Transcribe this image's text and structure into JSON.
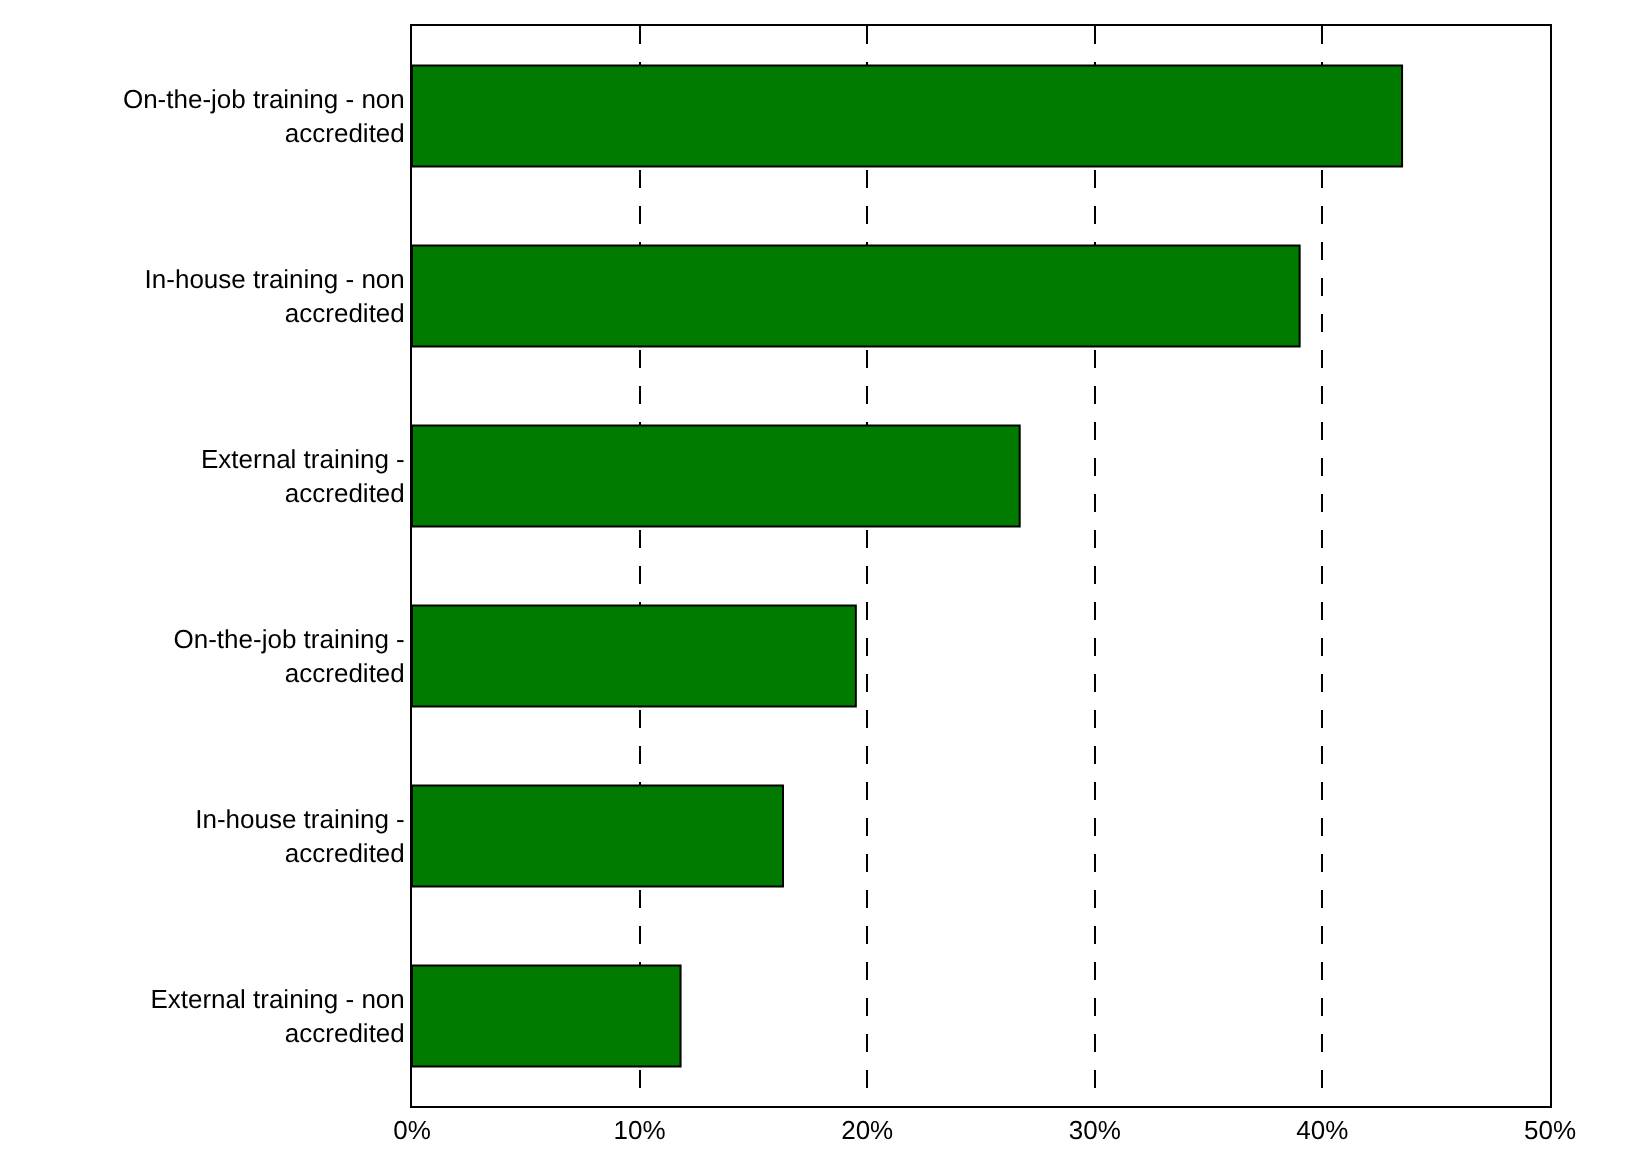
{
  "chart_data": {
    "type": "bar",
    "orientation": "horizontal",
    "categories": [
      "On-the-job training - non accredited",
      "In-house training - non accredited",
      "External training - accredited",
      "On-the-job training - accredited",
      "In-house training - accredited",
      "External training - non accredited"
    ],
    "values": [
      43.5,
      39.0,
      26.7,
      19.5,
      16.3,
      11.8
    ],
    "color": "#007b00",
    "xlim": [
      0,
      50
    ],
    "xticks": [
      {
        "value": 0,
        "label": "0%"
      },
      {
        "value": 10,
        "label": "10%"
      },
      {
        "value": 20,
        "label": "20%"
      },
      {
        "value": 30,
        "label": "30%"
      },
      {
        "value": 40,
        "label": "40%"
      },
      {
        "value": 50,
        "label": "50%"
      }
    ],
    "grid": "x",
    "legend": false
  }
}
